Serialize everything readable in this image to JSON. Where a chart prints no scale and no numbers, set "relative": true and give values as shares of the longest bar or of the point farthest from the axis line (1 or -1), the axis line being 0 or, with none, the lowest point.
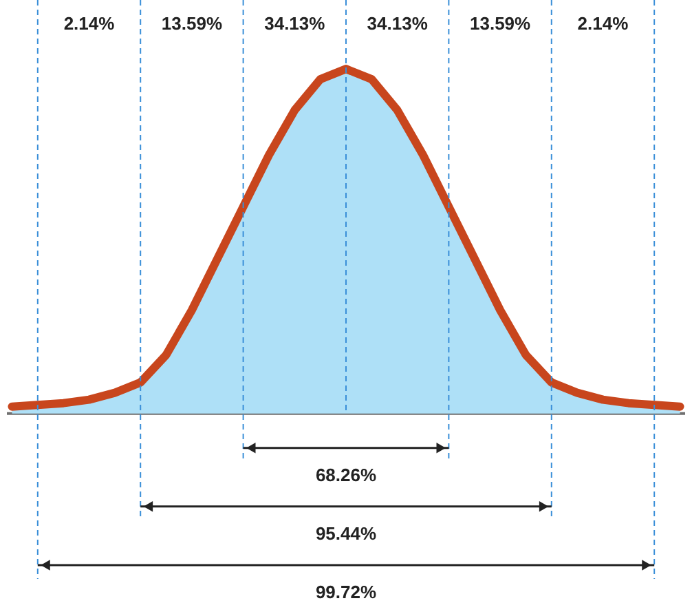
{
  "chart_data": {
    "type": "area",
    "relative": true,
    "categories": [
      null,
      null,
      null,
      null,
      null,
      null,
      null,
      null,
      null,
      null,
      null,
      null,
      null,
      null,
      null,
      null,
      null,
      null,
      null,
      null,
      null,
      null,
      null,
      null,
      null,
      null,
      null
    ],
    "series": [
      {
        "color": "#aee0f7",
        "values": [
          0.02,
          0.025,
          0.03,
          0.04,
          0.06,
          0.09,
          0.17,
          0.3,
          0.45,
          0.6,
          0.75,
          0.88,
          0.97,
          1,
          0.97,
          0.88,
          0.75,
          0.6,
          0.45,
          0.3,
          0.17,
          0.09,
          0.06,
          0.04,
          0.03,
          0.025,
          0.02
        ]
      },
      {
        "type": "line",
        "color": "#c8461d",
        "values": [
          0.02,
          0.025,
          0.03,
          0.04,
          0.06,
          0.09,
          0.17,
          0.3,
          0.45,
          0.6,
          0.75,
          0.88,
          0.97,
          1,
          0.97,
          0.88,
          0.75,
          0.6,
          0.45,
          0.3,
          0.17,
          0.09,
          0.06,
          0.04,
          0.03,
          0.025,
          0.02
        ]
      }
    ],
    "grid": "x",
    "line_style": "solid",
    "annotations": [
      "2.14%",
      "13.59%",
      "34.13%",
      "34.13%",
      "13.59%",
      "2.14%",
      "68.26%",
      "95.44%",
      "99.72%"
    ]
  }
}
